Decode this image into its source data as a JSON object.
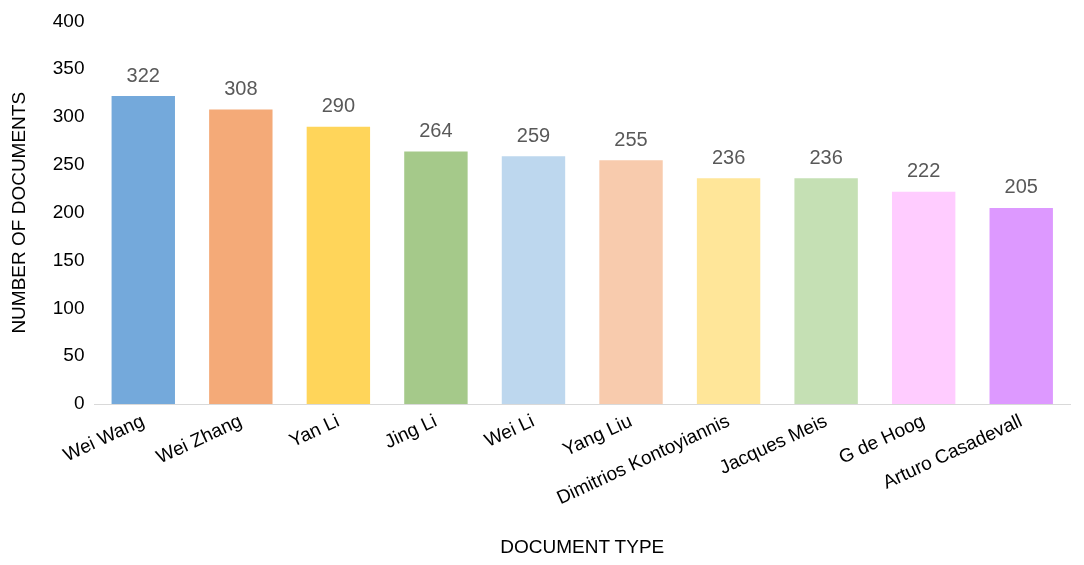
{
  "chart_data": {
    "type": "bar",
    "xlabel": "DOCUMENT TYPE",
    "ylabel": "NUMBER OF DOCUMENTS",
    "categories": [
      "Wei Wang",
      "Wei Zhang",
      "Yan Li",
      "Jing Li",
      "Wei Li",
      "Yang Liu",
      "Dimitrios Kontoyiannis",
      "Jacques Meis",
      "G de Hoog",
      "Arturo Casadevall"
    ],
    "values": [
      322,
      308,
      290,
      264,
      259,
      255,
      236,
      236,
      222,
      205
    ],
    "colors": [
      "#74a9db",
      "#f4aa78",
      "#ffd55a",
      "#a5c98a",
      "#bdd7ee",
      "#f8cbad",
      "#ffe699",
      "#c5e0b4",
      "#ffccff",
      "#dd99ff"
    ],
    "ylim": [
      0,
      400
    ],
    "yticks": [
      0,
      50,
      100,
      150,
      200,
      250,
      300,
      350,
      400
    ],
    "grid": false,
    "legend": false,
    "data_labels": true
  }
}
